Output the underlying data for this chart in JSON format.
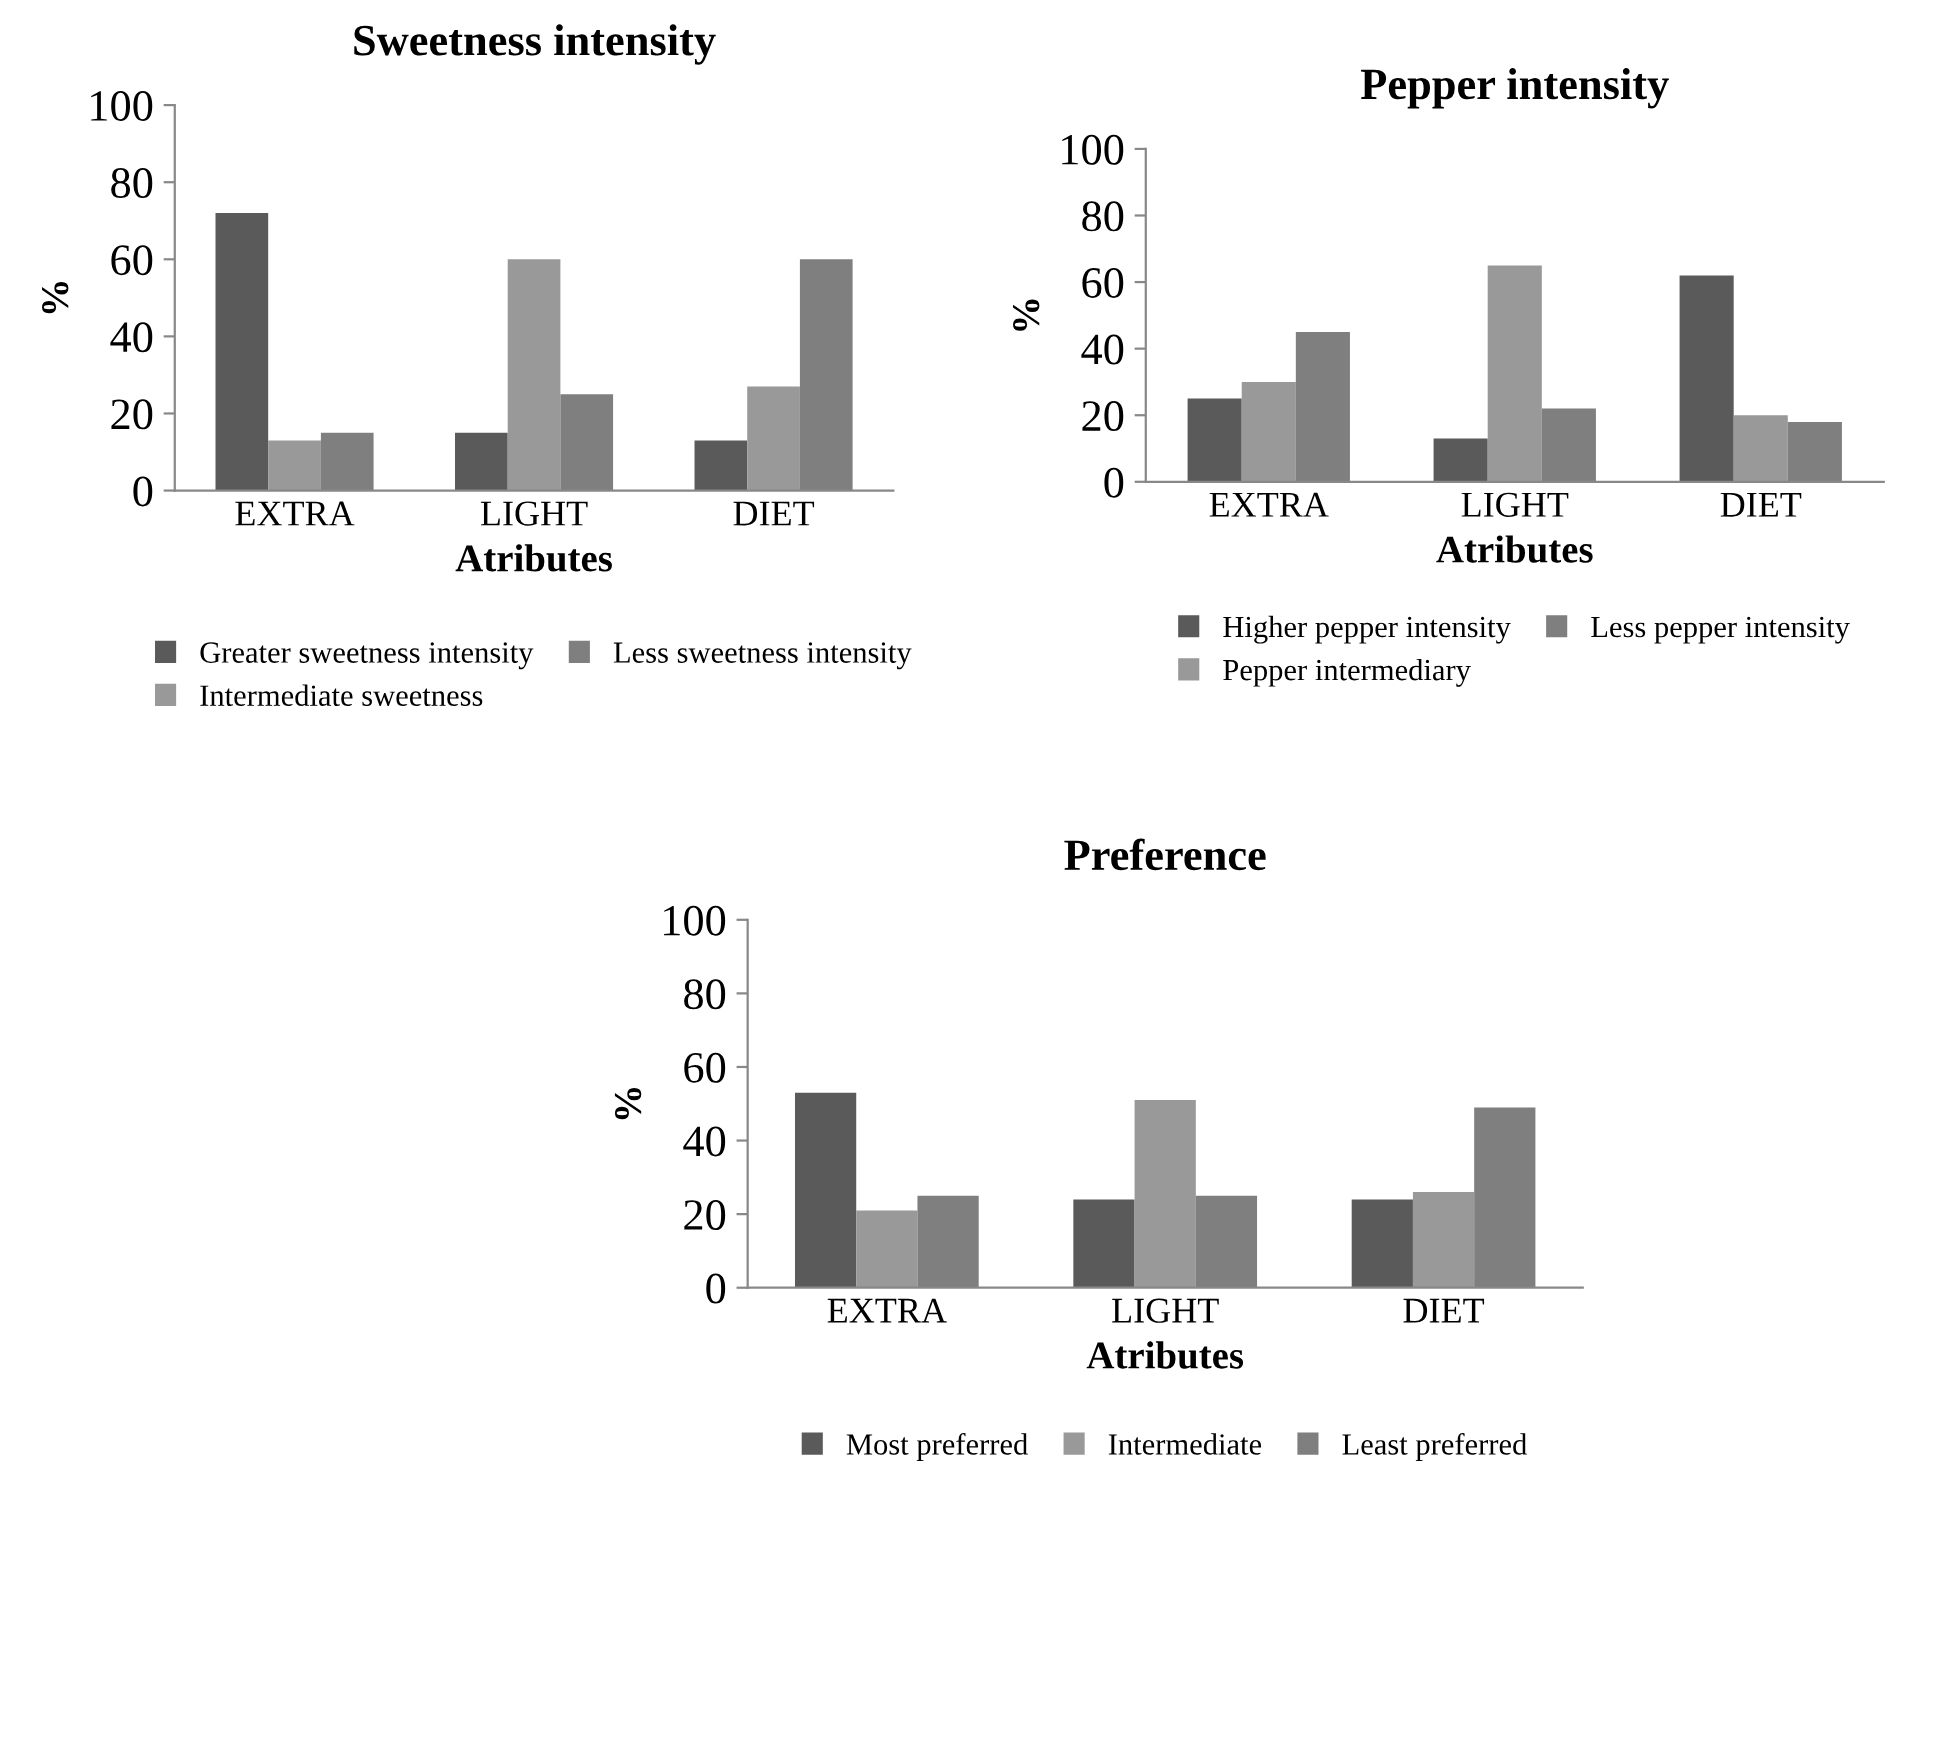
{
  "chart_data": [
    {
      "type": "bar",
      "title": "Sweetness intensity",
      "xlabel": "Atributes",
      "ylabel": "%",
      "categories": [
        "EXTRA",
        "LIGHT",
        "DIET"
      ],
      "ylim": [
        0,
        100
      ],
      "yticks": [
        0,
        20,
        40,
        60,
        80,
        100
      ],
      "grid": false,
      "legend": "bottom",
      "series": [
        {
          "name": "Greater sweetness intensity",
          "color": "#5a5a5a",
          "values": [
            72,
            15,
            13
          ]
        },
        {
          "name": "Intermediate sweetness",
          "color": "#999999",
          "values": [
            13,
            60,
            27
          ]
        },
        {
          "name": "Less sweetness intensity",
          "color": "#7f7f7f",
          "values": [
            15,
            25,
            60
          ]
        }
      ]
    },
    {
      "type": "bar",
      "title": "Pepper intensity",
      "xlabel": "Atributes",
      "ylabel": "%",
      "categories": [
        "EXTRA",
        "LIGHT",
        "DIET"
      ],
      "ylim": [
        0,
        100
      ],
      "yticks": [
        0,
        20,
        40,
        60,
        80,
        100
      ],
      "grid": false,
      "legend": "bottom",
      "series": [
        {
          "name": "Higher pepper intensity",
          "color": "#5a5a5a",
          "values": [
            25,
            13,
            62
          ]
        },
        {
          "name": "Pepper intermediary",
          "color": "#999999",
          "values": [
            30,
            65,
            20
          ]
        },
        {
          "name": "Less pepper intensity",
          "color": "#7f7f7f",
          "values": [
            45,
            22,
            18
          ]
        }
      ]
    },
    {
      "type": "bar",
      "title": "Preference",
      "xlabel": "Atributes",
      "ylabel": "%",
      "categories": [
        "EXTRA",
        "LIGHT",
        "DIET"
      ],
      "ylim": [
        0,
        100
      ],
      "yticks": [
        0,
        20,
        40,
        60,
        80,
        100
      ],
      "grid": false,
      "legend": "bottom",
      "series": [
        {
          "name": "Most preferred",
          "color": "#5a5a5a",
          "values": [
            53,
            24,
            24
          ]
        },
        {
          "name": "Intermediate",
          "color": "#999999",
          "values": [
            21,
            51,
            26
          ]
        },
        {
          "name": "Least preferred",
          "color": "#7f7f7f",
          "values": [
            25,
            25,
            49
          ]
        }
      ]
    }
  ]
}
